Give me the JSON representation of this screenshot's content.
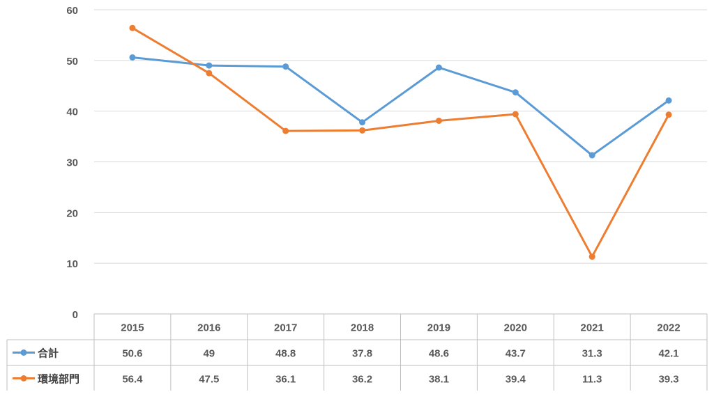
{
  "chart_data": {
    "type": "line",
    "categories": [
      "2015",
      "2016",
      "2017",
      "2018",
      "2019",
      "2020",
      "2021",
      "2022"
    ],
    "series": [
      {
        "name": "合計",
        "color": "#5B9BD5",
        "values": [
          50.6,
          49,
          48.8,
          37.8,
          48.6,
          43.7,
          31.3,
          42.1
        ]
      },
      {
        "name": "環境部門",
        "color": "#ED7D31",
        "values": [
          56.4,
          47.5,
          36.1,
          36.2,
          38.1,
          39.4,
          11.3,
          39.3
        ]
      }
    ],
    "y_ticks": [
      "0",
      "10",
      "20",
      "30",
      "40",
      "50",
      "60"
    ],
    "ylim": [
      0,
      60
    ],
    "grid": true,
    "legend": "data-table"
  }
}
